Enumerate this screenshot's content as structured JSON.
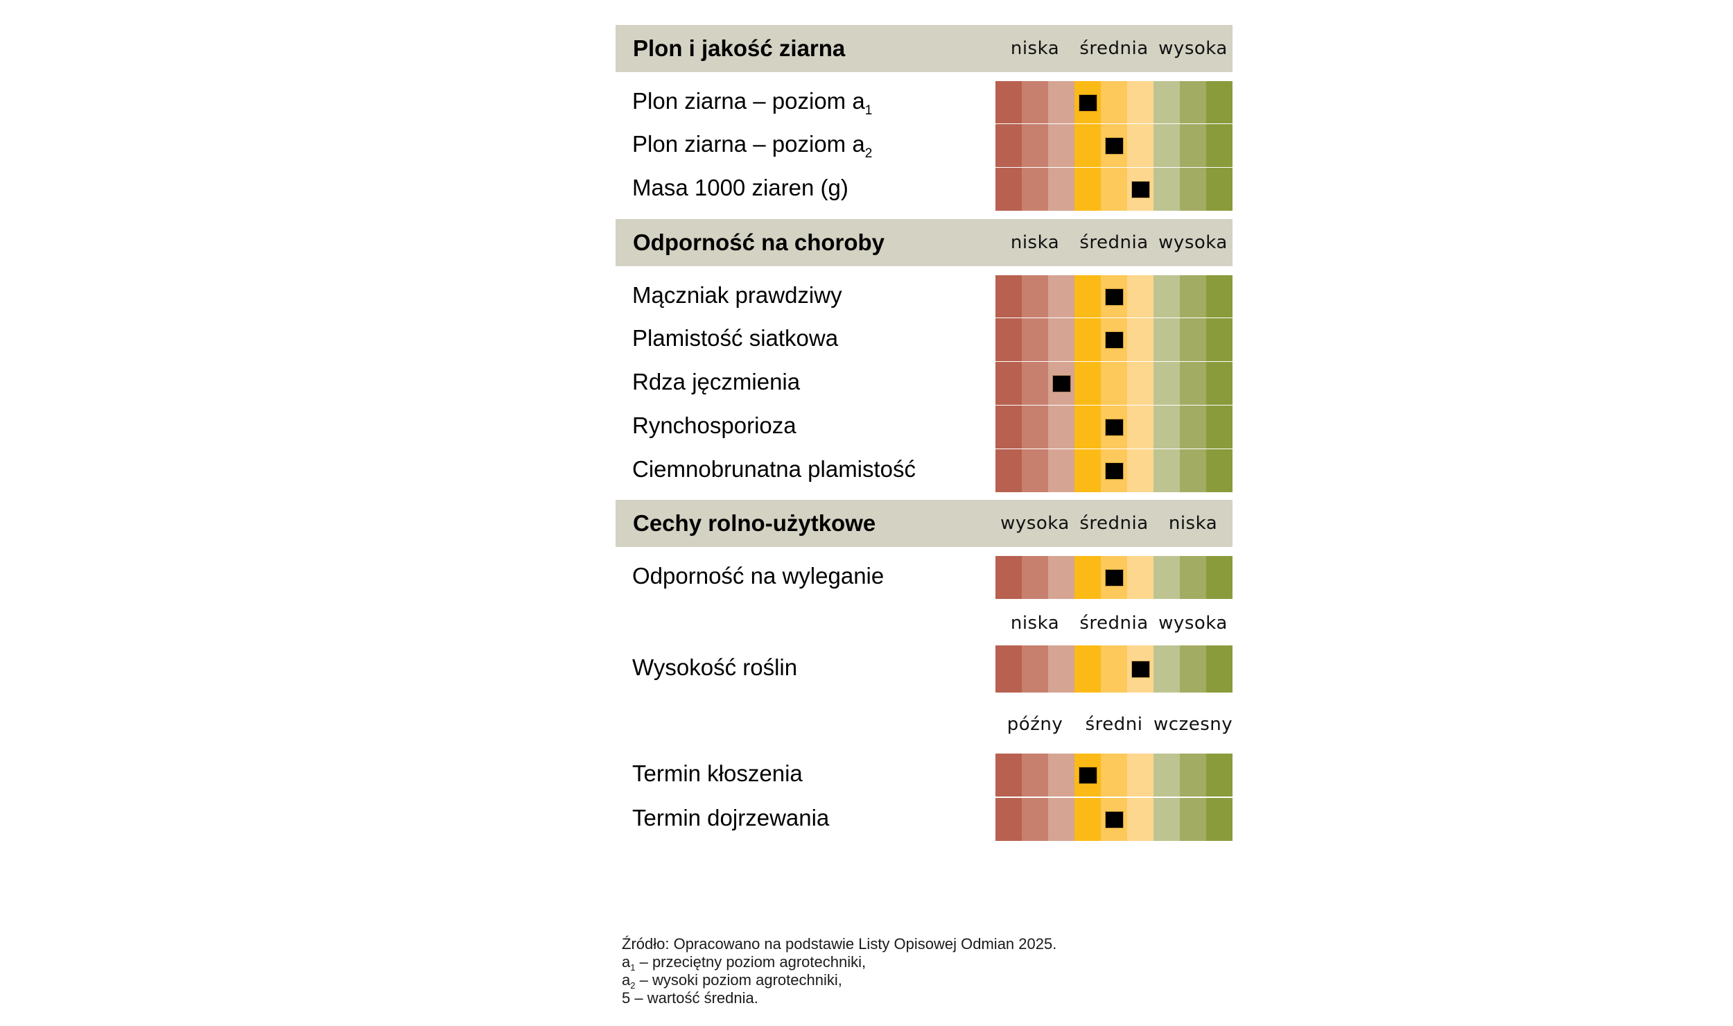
{
  "palette": [
    "#B86150",
    "#C7806E",
    "#D5A493",
    "#FCBA16",
    "#FDC95A",
    "#FED78E",
    "#BEC491",
    "#A3AC63",
    "#8A9B3C"
  ],
  "marker_color": "#000000",
  "header_color": "#D3D2C3",
  "chart_data": {
    "type": "table",
    "scale_min": 1,
    "scale_max": 9,
    "sections": [
      {
        "title": "Plon i jakość ziarna",
        "scale_labels": [
          "niska",
          "średnia",
          "wysoka"
        ],
        "rows": [
          {
            "label": "Plon ziarna – poziom a",
            "sub": "1",
            "value": 4
          },
          {
            "label": "Plon ziarna – poziom a",
            "sub": "2",
            "value": 5
          },
          {
            "label": "Masa 1000 ziaren (g)",
            "sub": "",
            "value": 6
          }
        ]
      },
      {
        "title": "Odporność na choroby",
        "scale_labels": [
          "niska",
          "średnia",
          "wysoka"
        ],
        "rows": [
          {
            "label": "Mączniak prawdziwy",
            "sub": "",
            "value": 5
          },
          {
            "label": "Plamistość siatkowa",
            "sub": "",
            "value": 5
          },
          {
            "label": "Rdza jęczmienia",
            "sub": "",
            "value": 3
          },
          {
            "label": "Rynchosporioza",
            "sub": "",
            "value": 5
          },
          {
            "label": "Ciemnobrunatna plamistość",
            "sub": "",
            "value": 5
          }
        ]
      },
      {
        "title": "Cechy rolno-użytkowe",
        "scale_labels": [
          "wysoka",
          "średnia",
          "niska"
        ],
        "rows": [
          {
            "label": "Odporność na wyleganie",
            "sub": "",
            "value": 5
          }
        ]
      },
      {
        "title": "",
        "scale_labels": [
          "niska",
          "średnia",
          "wysoka"
        ],
        "rows": [
          {
            "label": "Wysokość roślin",
            "sub": "",
            "value": 6
          }
        ]
      },
      {
        "title": "",
        "scale_labels": [
          "późny",
          "średni",
          "wczesny"
        ],
        "rows": [
          {
            "label": "Termin kłoszenia",
            "sub": "",
            "value": 4
          },
          {
            "label": "Termin dojrzewania",
            "sub": "",
            "value": 5
          }
        ]
      }
    ]
  },
  "footnote": {
    "source": "Źródło: Opracowano na podstawie Listy Opisowej Odmian 2025.",
    "a1_prefix": "a",
    "a1_sub": "1",
    "a1_text": " – przeciętny poziom agrotechniki,",
    "a2_prefix": "a",
    "a2_sub": "2",
    "a2_text": " – wysoki poziom agrotechniki,",
    "mean_note": "5 – wartość średnia."
  }
}
